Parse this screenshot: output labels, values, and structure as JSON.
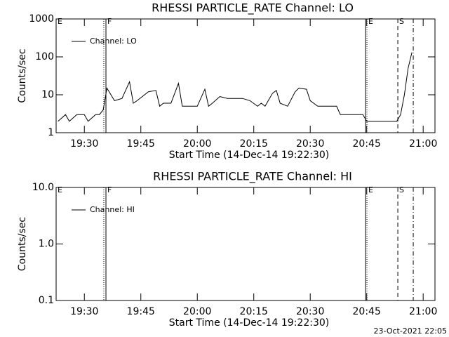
{
  "chart_data": [
    {
      "type": "line",
      "title": "RHESSI PARTICLE_RATE Channel: LO",
      "xlabel": "Start Time (14-Dec-14 19:22:30)",
      "ylabel": "Counts/sec",
      "x": [
        "19:23",
        "19:25",
        "19:26",
        "19:28",
        "19:30",
        "19:31",
        "19:33",
        "19:34",
        "19:35",
        "19:36",
        "19:38",
        "19:40",
        "19:42",
        "19:43",
        "19:44",
        "19:47",
        "19:49",
        "19:50",
        "19:51",
        "19:53",
        "19:55",
        "19:56",
        "19:57",
        "20:00",
        "20:02",
        "20:03",
        "20:04",
        "20:06",
        "20:08",
        "20:10",
        "20:12",
        "20:14",
        "20:16",
        "20:17",
        "20:18",
        "20:20",
        "20:21",
        "20:22",
        "20:24",
        "20:26",
        "20:27",
        "20:29",
        "20:30",
        "20:32",
        "20:35",
        "20:37",
        "20:38",
        "20:40",
        "20:42",
        "20:44",
        "20:45",
        "20:47",
        "20:50",
        "20:53",
        "20:54",
        "20:55",
        "20:56",
        "20:57"
      ],
      "series": [
        {
          "name": "Channel: LO",
          "color": "#000000",
          "values": [
            2,
            3,
            2,
            3,
            3,
            2,
            3,
            3,
            4,
            15,
            7,
            8,
            22,
            6,
            7,
            12,
            13,
            5,
            6,
            6,
            20,
            5,
            5,
            5,
            14,
            5,
            6,
            9,
            8,
            8,
            8,
            7,
            5,
            6,
            5,
            11,
            13,
            6,
            5,
            12,
            15,
            14,
            7,
            5,
            5,
            5,
            3,
            3,
            3,
            3,
            2,
            2,
            2,
            2,
            3,
            10,
            50,
            130
          ]
        }
      ],
      "xlim": [
        "19:22:30",
        "21:03:08"
      ],
      "xticks": [
        "19:30",
        "19:45",
        "20:00",
        "20:15",
        "20:30",
        "20:45",
        "21:00"
      ],
      "ylim": [
        1,
        1000
      ],
      "yticks": [
        1,
        10,
        100,
        1000
      ],
      "log_y": true,
      "legend": "upper left",
      "markers": [
        {
          "x": "19:22:30",
          "label": "E",
          "style": "none"
        },
        {
          "x": "19:35:10",
          "style": "dotted"
        },
        {
          "x": "19:35:44",
          "label": "F",
          "style": "solid"
        },
        {
          "x": "20:44:41",
          "style": "solid"
        },
        {
          "x": "20:45:04",
          "label": "E",
          "style": "dotted"
        },
        {
          "x": "20:53:16",
          "label": "S",
          "style": "dashed"
        },
        {
          "x": "20:57:22",
          "style": "dashdot"
        }
      ]
    },
    {
      "type": "line",
      "title": "RHESSI PARTICLE_RATE Channel: HI",
      "xlabel": "Start Time (14-Dec-14 19:22:30)",
      "ylabel": "Counts/sec",
      "x": [],
      "series": [
        {
          "name": "Channel: HI",
          "color": "#000000",
          "values": []
        }
      ],
      "xlim": [
        "19:22:30",
        "21:03:08"
      ],
      "xticks": [
        "19:30",
        "19:45",
        "20:00",
        "20:15",
        "20:30",
        "20:45",
        "21:00"
      ],
      "ylim": [
        0.1,
        10
      ],
      "yticks": [
        0.1,
        {
          "value": 1,
          "label": "1.0"
        },
        {
          "value": 10,
          "label": "10.0"
        }
      ],
      "log_y": true,
      "legend": "upper left",
      "markers": [
        {
          "x": "19:22:30",
          "label": "E",
          "style": "none"
        },
        {
          "x": "19:35:10",
          "style": "dotted"
        },
        {
          "x": "19:35:44",
          "label": "F",
          "style": "solid"
        },
        {
          "x": "20:44:41",
          "style": "solid"
        },
        {
          "x": "20:45:04",
          "label": "E",
          "style": "dotted"
        },
        {
          "x": "20:53:16",
          "label": "S",
          "style": "dashed"
        },
        {
          "x": "20:57:22",
          "style": "dashdot"
        }
      ]
    }
  ],
  "footer": "23-Oct-2021 22:05"
}
